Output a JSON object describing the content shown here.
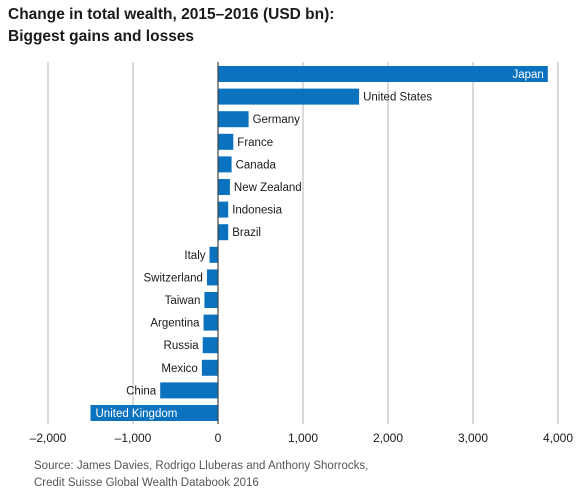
{
  "title_line1": "Change in total wealth, 2015–2016 (USD bn):",
  "title_line2": "Biggest gains and losses",
  "source_line1": "Source: James Davies, Rodrigo Lluberas and Anthony Shorrocks,",
  "source_line2": "Credit Suisse Global Wealth Databook 2016",
  "colors": {
    "bar": "#0a72bf",
    "grid": "#b5b5b5",
    "axis": "#444444",
    "label": "#1a1a1a",
    "inside_label": "#ffffff"
  },
  "chart_data": {
    "type": "bar",
    "orientation": "horizontal",
    "title": "Change in total wealth, 2015–2016 (USD bn): Biggest gains and losses",
    "xlabel": "",
    "ylabel": "",
    "xlim": [
      -2000,
      4000
    ],
    "x_ticks": [
      -2000,
      -1000,
      0,
      1000,
      2000,
      3000,
      4000
    ],
    "x_tick_labels": [
      "–2,000",
      "–1,000",
      "0",
      "1,000",
      "2,000",
      "3,000",
      "4,000"
    ],
    "grid": true,
    "categories": [
      "Japan",
      "United States",
      "Germany",
      "France",
      "Canada",
      "New Zealand",
      "Indonesia",
      "Brazil",
      "Italy",
      "Switzerland",
      "Taiwan",
      "Argentina",
      "Russia",
      "Mexico",
      "China",
      "United Kingdom"
    ],
    "values": [
      3880,
      1660,
      360,
      180,
      160,
      140,
      120,
      120,
      -100,
      -130,
      -160,
      -170,
      -180,
      -190,
      -680,
      -1500
    ],
    "label_inside": [
      true,
      false,
      false,
      false,
      false,
      false,
      false,
      false,
      false,
      false,
      false,
      false,
      false,
      false,
      false,
      true
    ]
  }
}
